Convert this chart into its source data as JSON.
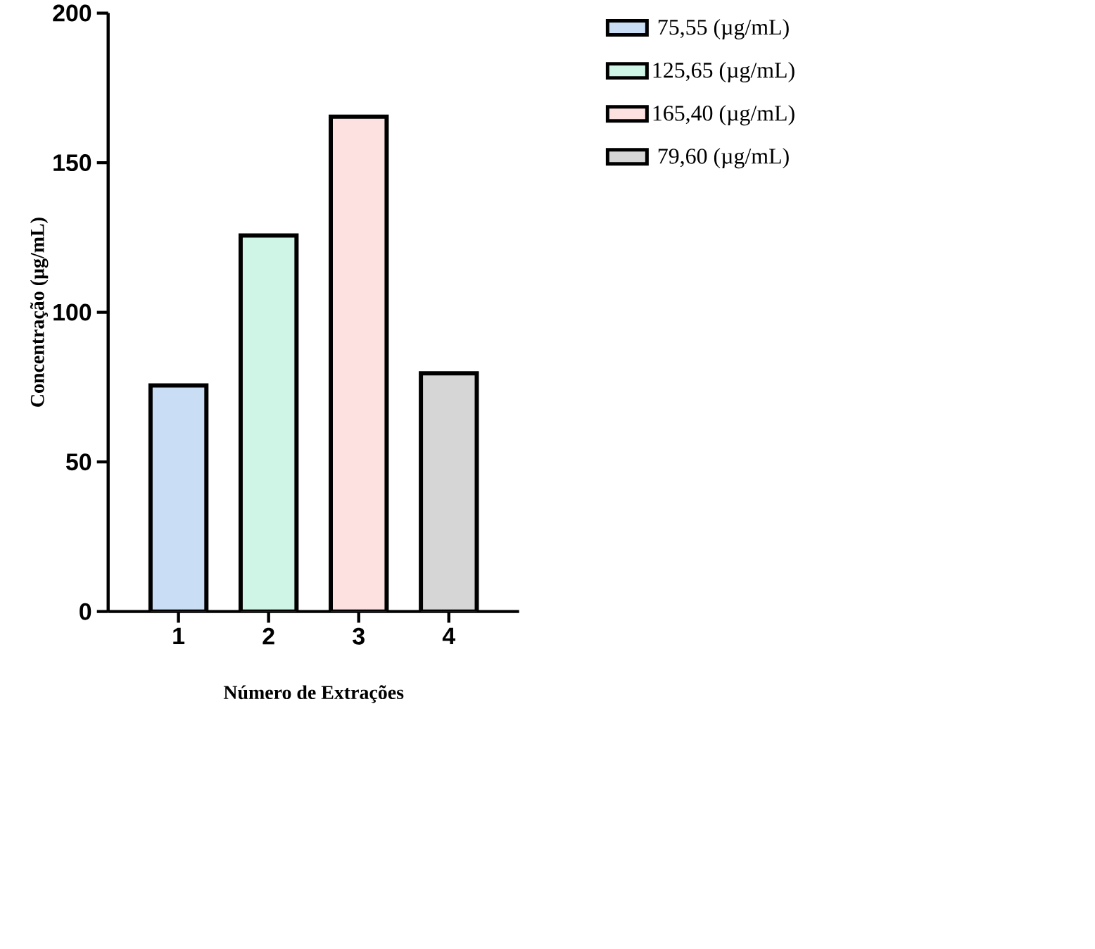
{
  "chart_data": {
    "type": "bar",
    "xlabel": "Número de Extrações",
    "ylabel": "Concentração (µg/mL)",
    "categories": [
      "1",
      "2",
      "3",
      "4"
    ],
    "series": [
      {
        "name": "75,55  (µg/mL)",
        "color": "#c9ddf5",
        "values": [
          75.55,
          null,
          null,
          null
        ]
      },
      {
        "name": "125,65  (µg/mL)",
        "color": "#cff5e6",
        "values": [
          null,
          125.65,
          null,
          null
        ]
      },
      {
        "name": "165,40  (µg/mL)",
        "color": "#fde0e0",
        "values": [
          null,
          null,
          165.4,
          null
        ]
      },
      {
        "name": "79,60  (µg/mL)",
        "color": "#d6d6d6",
        "values": [
          null,
          null,
          null,
          79.6
        ]
      }
    ],
    "ylim": [
      0,
      200
    ],
    "yticks": [
      0,
      50,
      100,
      150,
      200
    ],
    "legend": "right",
    "grid": false
  }
}
